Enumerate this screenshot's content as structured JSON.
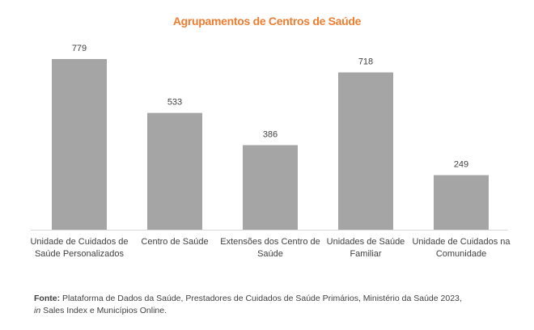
{
  "chart_data": {
    "type": "bar",
    "title": "Agrupamentos de Centros de Saúde",
    "categories": [
      "Unidade de Cuidados de Saúde Personalizados",
      "Centro de Saúde",
      "Extensões dos Centro de Saúde",
      "Unidades de Saúde Familiar",
      "Unidade de Cuidados na Comunidade"
    ],
    "values": [
      779,
      533,
      386,
      718,
      249
    ],
    "ylim": [
      0,
      779
    ],
    "xlabel": "",
    "ylabel": "",
    "grid": false,
    "bar_color": "#A5A5A5",
    "title_color": "#ED7D31"
  },
  "source": {
    "label": "Fonte:",
    "text": " Plataforma de Dados da Saúde, Prestadores de Cuidados de Saúde Primários, Ministério da Saúde 2023,",
    "line2_italic": "in",
    "line2_text": " Sales Index e Municípios Online."
  }
}
